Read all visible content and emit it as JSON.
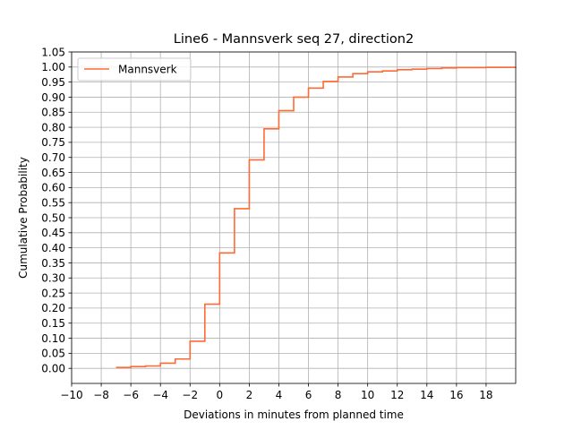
{
  "chart_data": {
    "type": "line",
    "step": true,
    "title": "Line6 - Mannsverk seq 27, direction2",
    "xlabel": "Deviations in minutes from planned time",
    "ylabel": "Cumulative Probability",
    "xlim": [
      -10,
      20
    ],
    "ylim": [
      -0.05,
      1.05
    ],
    "grid": true,
    "legend_position": "top-left",
    "xticks": [
      -10,
      -8,
      -6,
      -4,
      -2,
      0,
      2,
      4,
      6,
      8,
      10,
      12,
      14,
      16,
      18
    ],
    "xtick_labels": [
      "−10",
      "−8",
      "−6",
      "−4",
      "−2",
      "0",
      "2",
      "4",
      "6",
      "8",
      "10",
      "12",
      "14",
      "16",
      "18"
    ],
    "yticks": [
      0.0,
      0.05,
      0.1,
      0.15,
      0.2,
      0.25,
      0.3,
      0.35,
      0.4,
      0.45,
      0.5,
      0.55,
      0.6,
      0.65,
      0.7,
      0.75,
      0.8,
      0.85,
      0.9,
      0.95,
      1.0,
      1.05
    ],
    "ytick_labels": [
      "0.00",
      "0.05",
      "0.10",
      "0.15",
      "0.20",
      "0.25",
      "0.30",
      "0.35",
      "0.40",
      "0.45",
      "0.50",
      "0.55",
      "0.60",
      "0.65",
      "0.70",
      "0.75",
      "0.80",
      "0.85",
      "0.90",
      "0.95",
      "1.00",
      "1.05"
    ],
    "series": [
      {
        "name": "Mannsverk",
        "color": "#ff6a35",
        "x": [
          -7,
          -6,
          -5,
          -4,
          -3,
          -2,
          -1,
          0,
          1,
          2,
          3,
          4,
          5,
          6,
          7,
          8,
          9,
          10,
          11,
          12,
          13,
          14,
          15,
          16,
          17,
          18,
          19,
          20
        ],
        "y": [
          0.003,
          0.006,
          0.008,
          0.017,
          0.031,
          0.09,
          0.213,
          0.383,
          0.53,
          0.692,
          0.795,
          0.855,
          0.9,
          0.93,
          0.952,
          0.967,
          0.978,
          0.984,
          0.987,
          0.991,
          0.993,
          0.995,
          0.997,
          0.998,
          0.998,
          0.999,
          0.999,
          1.0
        ]
      }
    ]
  }
}
